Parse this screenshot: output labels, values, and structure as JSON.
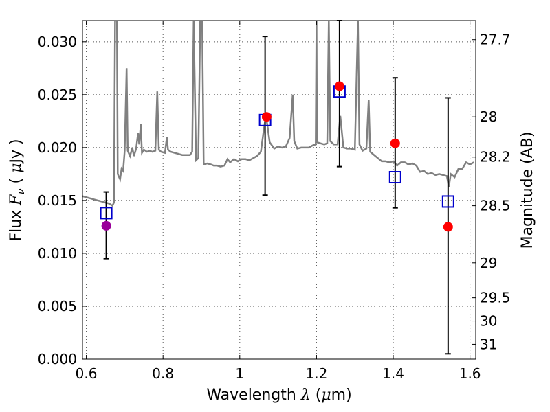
{
  "chart_data": {
    "type": "scatter",
    "xlabel": {
      "pre": "Wavelength ",
      "sym": "λ",
      "mid": " (",
      "mu": "μ",
      "post": "m)"
    },
    "ylabel": {
      "pre": "Flux ",
      "sym": "F",
      "sub": "ν",
      "mid": " ( ",
      "mu": "μ",
      "post": "Jy )"
    },
    "y2label": "Magnitude (AB)",
    "xlim": [
      0.59,
      1.615
    ],
    "ylim": [
      0.0,
      0.032
    ],
    "grid": true,
    "xticks": [
      {
        "v": 0.6,
        "label": "0.6"
      },
      {
        "v": 0.8,
        "label": "0.8"
      },
      {
        "v": 1.0,
        "label": "1"
      },
      {
        "v": 1.2,
        "label": "1.2"
      },
      {
        "v": 1.4,
        "label": "1.4"
      },
      {
        "v": 1.6,
        "label": "1.6"
      }
    ],
    "yticks": [
      {
        "v": 0.0,
        "label": "0.000"
      },
      {
        "v": 0.005,
        "label": "0.005"
      },
      {
        "v": 0.01,
        "label": "0.010"
      },
      {
        "v": 0.015,
        "label": "0.015"
      },
      {
        "v": 0.02,
        "label": "0.020"
      },
      {
        "v": 0.025,
        "label": "0.025"
      },
      {
        "v": 0.03,
        "label": "0.030"
      }
    ],
    "mag_ticks": [
      {
        "label": "27.7",
        "flux": 0.0302
      },
      {
        "label": "28",
        "flux": 0.0229
      },
      {
        "label": "28.2",
        "flux": 0.0191
      },
      {
        "label": "28.5",
        "flux": 0.0145
      },
      {
        "label": "29",
        "flux": 0.0091
      },
      {
        "label": "29.5",
        "flux": 0.0058
      },
      {
        "label": "30",
        "flux": 0.0036
      },
      {
        "label": "31",
        "flux": 0.0014
      }
    ],
    "errorbars": [
      {
        "x": 0.652,
        "low": 0.0095,
        "high": 0.0158
      },
      {
        "x": 1.066,
        "low": 0.0155,
        "high": 0.0305
      },
      {
        "x": 1.26,
        "low": 0.0182,
        "high": 0.032
      },
      {
        "x": 1.405,
        "low": 0.0143,
        "high": 0.0266
      },
      {
        "x": 1.543,
        "low": 0.0005,
        "high": 0.0247
      }
    ],
    "model_squares": [
      {
        "x": 0.652,
        "y": 0.0138
      },
      {
        "x": 1.066,
        "y": 0.0226
      },
      {
        "x": 1.26,
        "y": 0.0253
      },
      {
        "x": 1.405,
        "y": 0.0172
      },
      {
        "x": 1.543,
        "y": 0.0149
      }
    ],
    "observed_points": [
      {
        "x": 0.652,
        "y": 0.0126,
        "color": "#990099"
      },
      {
        "x": 1.07,
        "y": 0.0229,
        "color": "#ff0000"
      },
      {
        "x": 1.26,
        "y": 0.0258,
        "color": "#ff0000"
      },
      {
        "x": 1.405,
        "y": 0.0204,
        "color": "#ff0000"
      },
      {
        "x": 1.543,
        "y": 0.0125,
        "color": "#ff0000"
      }
    ],
    "spectrum": [
      [
        0.59,
        0.0154
      ],
      [
        0.6,
        0.0153
      ],
      [
        0.61,
        0.0152
      ],
      [
        0.62,
        0.0151
      ],
      [
        0.63,
        0.015
      ],
      [
        0.64,
        0.0149
      ],
      [
        0.65,
        0.0148
      ],
      [
        0.66,
        0.0147
      ],
      [
        0.668,
        0.0145
      ],
      [
        0.672,
        0.0148
      ],
      [
        0.675,
        0.032
      ],
      [
        0.68,
        0.032
      ],
      [
        0.682,
        0.0175
      ],
      [
        0.688,
        0.017
      ],
      [
        0.692,
        0.018
      ],
      [
        0.696,
        0.0178
      ],
      [
        0.7,
        0.0197
      ],
      [
        0.705,
        0.0275
      ],
      [
        0.708,
        0.0197
      ],
      [
        0.714,
        0.0192
      ],
      [
        0.72,
        0.02
      ],
      [
        0.724,
        0.0192
      ],
      [
        0.73,
        0.0199
      ],
      [
        0.735,
        0.0214
      ],
      [
        0.738,
        0.0203
      ],
      [
        0.742,
        0.0222
      ],
      [
        0.745,
        0.0195
      ],
      [
        0.75,
        0.0198
      ],
      [
        0.758,
        0.0196
      ],
      [
        0.765,
        0.0197
      ],
      [
        0.772,
        0.0196
      ],
      [
        0.78,
        0.0197
      ],
      [
        0.785,
        0.0253
      ],
      [
        0.789,
        0.0198
      ],
      [
        0.795,
        0.0196
      ],
      [
        0.805,
        0.0195
      ],
      [
        0.81,
        0.021
      ],
      [
        0.813,
        0.0198
      ],
      [
        0.82,
        0.0196
      ],
      [
        0.83,
        0.0195
      ],
      [
        0.84,
        0.0194
      ],
      [
        0.85,
        0.0193
      ],
      [
        0.86,
        0.0193
      ],
      [
        0.87,
        0.0193
      ],
      [
        0.876,
        0.0196
      ],
      [
        0.88,
        0.032
      ],
      [
        0.886,
        0.0188
      ],
      [
        0.892,
        0.019
      ],
      [
        0.897,
        0.032
      ],
      [
        0.902,
        0.032
      ],
      [
        0.906,
        0.0184
      ],
      [
        0.915,
        0.0185
      ],
      [
        0.925,
        0.0184
      ],
      [
        0.932,
        0.0183
      ],
      [
        0.94,
        0.0183
      ],
      [
        0.95,
        0.0182
      ],
      [
        0.96,
        0.0183
      ],
      [
        0.968,
        0.0189
      ],
      [
        0.975,
        0.0186
      ],
      [
        0.985,
        0.0189
      ],
      [
        0.995,
        0.0187
      ],
      [
        1.005,
        0.0189
      ],
      [
        1.015,
        0.0189
      ],
      [
        1.025,
        0.0188
      ],
      [
        1.035,
        0.019
      ],
      [
        1.045,
        0.0192
      ],
      [
        1.055,
        0.0196
      ],
      [
        1.062,
        0.0215
      ],
      [
        1.068,
        0.023
      ],
      [
        1.072,
        0.0221
      ],
      [
        1.078,
        0.0205
      ],
      [
        1.09,
        0.0199
      ],
      [
        1.1,
        0.0201
      ],
      [
        1.11,
        0.02
      ],
      [
        1.12,
        0.0201
      ],
      [
        1.13,
        0.0209
      ],
      [
        1.138,
        0.025
      ],
      [
        1.142,
        0.0206
      ],
      [
        1.15,
        0.0199
      ],
      [
        1.16,
        0.02
      ],
      [
        1.17,
        0.02
      ],
      [
        1.18,
        0.02
      ],
      [
        1.19,
        0.0202
      ],
      [
        1.198,
        0.0203
      ],
      [
        1.2,
        0.032
      ],
      [
        1.201,
        0.0205
      ],
      [
        1.21,
        0.0204
      ],
      [
        1.22,
        0.0203
      ],
      [
        1.228,
        0.0204
      ],
      [
        1.232,
        0.032
      ],
      [
        1.236,
        0.0206
      ],
      [
        1.245,
        0.0203
      ],
      [
        1.255,
        0.0203
      ],
      [
        1.262,
        0.023
      ],
      [
        1.27,
        0.02
      ],
      [
        1.28,
        0.0199
      ],
      [
        1.29,
        0.0199
      ],
      [
        1.3,
        0.0198
      ],
      [
        1.308,
        0.032
      ],
      [
        1.312,
        0.0203
      ],
      [
        1.32,
        0.0197
      ],
      [
        1.33,
        0.0199
      ],
      [
        1.336,
        0.0245
      ],
      [
        1.34,
        0.0196
      ],
      [
        1.35,
        0.0193
      ],
      [
        1.36,
        0.019
      ],
      [
        1.37,
        0.0187
      ],
      [
        1.38,
        0.0187
      ],
      [
        1.39,
        0.0186
      ],
      [
        1.4,
        0.0187
      ],
      [
        1.41,
        0.0183
      ],
      [
        1.42,
        0.0186
      ],
      [
        1.43,
        0.0186
      ],
      [
        1.44,
        0.0184
      ],
      [
        1.45,
        0.0185
      ],
      [
        1.46,
        0.0183
      ],
      [
        1.47,
        0.0177
      ],
      [
        1.48,
        0.0178
      ],
      [
        1.49,
        0.0175
      ],
      [
        1.5,
        0.0176
      ],
      [
        1.51,
        0.0174
      ],
      [
        1.52,
        0.0175
      ],
      [
        1.53,
        0.0174
      ],
      [
        1.54,
        0.0173
      ],
      [
        1.545,
        0.0163
      ],
      [
        1.55,
        0.0175
      ],
      [
        1.56,
        0.0172
      ],
      [
        1.57,
        0.018
      ],
      [
        1.58,
        0.018
      ],
      [
        1.59,
        0.0186
      ],
      [
        1.6,
        0.0184
      ],
      [
        1.61,
        0.0186
      ]
    ],
    "colors": {
      "spectrum": "#808080",
      "model": "#0000cc",
      "errorbar": "#000000",
      "grid": "#555555"
    }
  }
}
